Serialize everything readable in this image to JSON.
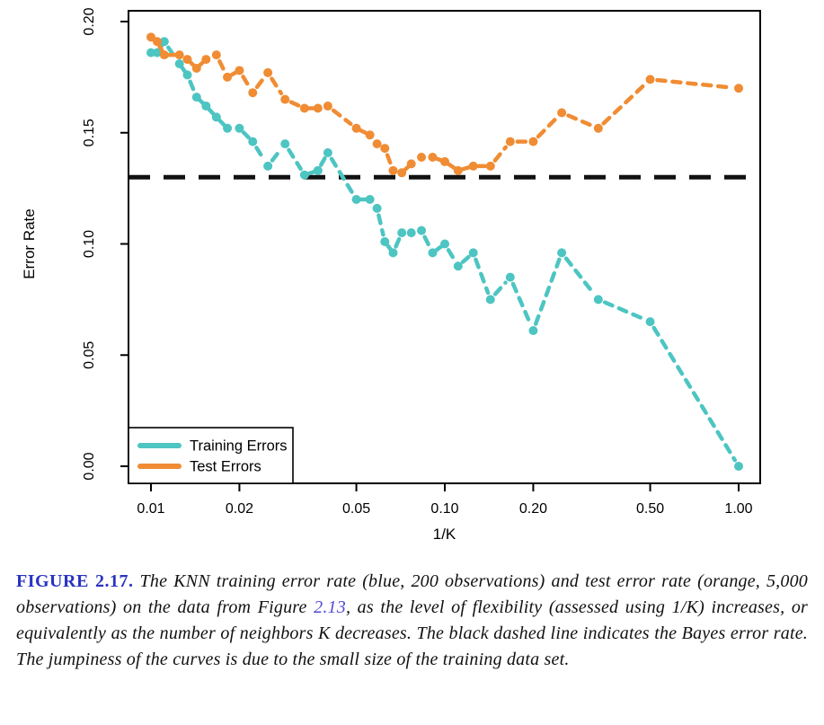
{
  "caption": {
    "label": "FIGURE 2.17.",
    "part1": " The KNN training error rate (blue, 200 observations) and test error rate (orange, 5,000 observations) on the data from Figure ",
    "ref": "2.13",
    "part2": ", as the level of flexibility (assessed using 1/K) increases, or equivalently as the number of neighbors K decreases. The black dashed line indicates the Bayes error rate. The jumpiness of the curves is due to the small size of the training data set.",
    "label_color": "#2a33c2",
    "ref_color": "#5149d9"
  },
  "chart_data": {
    "type": "line",
    "title": "",
    "xlabel": "1/K",
    "ylabel": "Error Rate",
    "x_scale": "log",
    "xlim": [
      0.0093,
      1.19
    ],
    "ylim": [
      -0.009,
      0.205
    ],
    "x_ticks": [
      0.01,
      0.02,
      0.05,
      0.1,
      0.2,
      0.5,
      1.0
    ],
    "x_tick_labels": [
      "0.01",
      "0.02",
      "0.05",
      "0.10",
      "0.20",
      "0.50",
      "1.00"
    ],
    "y_ticks": [
      0.0,
      0.05,
      0.1,
      0.15,
      0.2
    ],
    "y_tick_labels": [
      "0.00",
      "0.05",
      "0.10",
      "0.15",
      "0.20"
    ],
    "grid": false,
    "bayes_error": 0.13,
    "bayes_line_color": "#111111",
    "x": [
      0.01,
      0.0105,
      0.0111,
      0.0125,
      0.0133,
      0.0143,
      0.0154,
      0.0167,
      0.0182,
      0.02,
      0.0222,
      0.025,
      0.0286,
      0.0333,
      0.037,
      0.04,
      0.05,
      0.0556,
      0.0588,
      0.0625,
      0.0667,
      0.0714,
      0.0769,
      0.0833,
      0.0909,
      0.1,
      0.111,
      0.125,
      0.143,
      0.167,
      0.2,
      0.25,
      0.333,
      0.5,
      1.0
    ],
    "series": [
      {
        "name": "Training Errors",
        "color": "#4dc5c2",
        "values": [
          0.186,
          0.186,
          0.191,
          0.181,
          0.176,
          0.166,
          0.162,
          0.157,
          0.152,
          0.152,
          0.146,
          0.135,
          0.145,
          0.131,
          0.133,
          0.141,
          0.12,
          0.12,
          0.116,
          0.101,
          0.096,
          0.105,
          0.105,
          0.106,
          0.096,
          0.1,
          0.09,
          0.096,
          0.075,
          0.085,
          0.061,
          0.096,
          0.075,
          0.065,
          0.0
        ]
      },
      {
        "name": "Test Errors",
        "color": "#f08c33",
        "values": [
          0.193,
          0.191,
          0.185,
          0.185,
          0.183,
          0.179,
          0.183,
          0.185,
          0.175,
          0.178,
          0.168,
          0.177,
          0.165,
          0.161,
          0.161,
          0.162,
          0.152,
          0.149,
          0.145,
          0.143,
          0.133,
          0.132,
          0.136,
          0.139,
          0.139,
          0.137,
          0.133,
          0.135,
          0.135,
          0.146,
          0.146,
          0.159,
          0.152,
          0.174,
          0.17
        ]
      }
    ],
    "legend": {
      "position": "bottom-left",
      "items": [
        "Training Errors",
        "Test Errors"
      ]
    }
  }
}
